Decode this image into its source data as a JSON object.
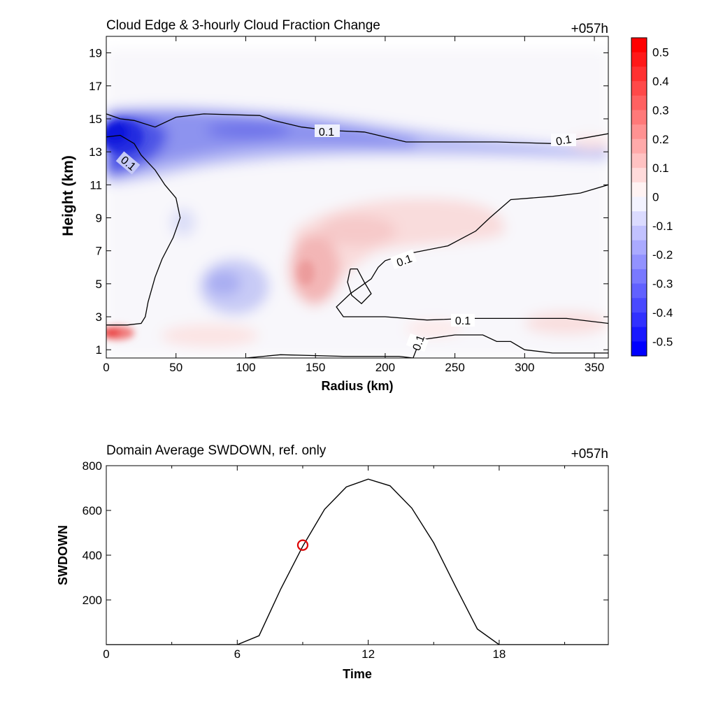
{
  "top": {
    "title": "Cloud Edge & 3-hourly Cloud Fraction Change",
    "timestamp": "+057h",
    "xlabel": "Radius (km)",
    "ylabel": "Height (km)",
    "xticks": [
      "0",
      "50",
      "100",
      "150",
      "200",
      "250",
      "300",
      "350"
    ],
    "yticks": [
      "1",
      "3",
      "5",
      "7",
      "9",
      "11",
      "13",
      "15",
      "17",
      "19"
    ],
    "contour_label": "0.1",
    "colorbar_ticks": [
      "0.5",
      "0.4",
      "0.3",
      "0.2",
      "0.1",
      "0",
      "-0.1",
      "-0.2",
      "-0.3",
      "-0.4",
      "-0.5"
    ]
  },
  "bottom": {
    "title": "Domain Average SWDOWN, ref. only",
    "timestamp": "+057h",
    "xlabel": "Time",
    "ylabel": "SWDOWN",
    "xticks": [
      "0",
      "6",
      "12",
      "18"
    ],
    "yticks": [
      "200",
      "400",
      "600",
      "800"
    ]
  },
  "chart_data": [
    {
      "type": "heatmap",
      "title": "Cloud Edge & 3-hourly Cloud Fraction Change",
      "xlabel": "Radius (km)",
      "ylabel": "Height (km)",
      "xlim": [
        0,
        360
      ],
      "ylim": [
        0.5,
        20
      ],
      "colorbar": {
        "range": [
          -0.55,
          0.55
        ],
        "ticks": [
          0.5,
          0.4,
          0.3,
          0.2,
          0.1,
          0,
          -0.1,
          -0.2,
          -0.3,
          -0.4,
          -0.5
        ],
        "colors": {
          "negative": "#0000ff",
          "zero": "#ffffff",
          "positive": "#ff0000"
        }
      },
      "features": [
        {
          "kind": "min",
          "x": 10,
          "y": 13.8,
          "value": -0.5
        },
        {
          "kind": "min",
          "x": 100,
          "y": 14.4,
          "value": -0.3
        },
        {
          "kind": "min",
          "x": 90,
          "y": 5.2,
          "value": -0.25
        },
        {
          "kind": "max",
          "x": 5,
          "y": 2.0,
          "value": 0.45
        },
        {
          "kind": "max",
          "x": 145,
          "y": 5.5,
          "value": 0.2
        },
        {
          "kind": "max",
          "x": 185,
          "y": 8.5,
          "value": 0.1
        },
        {
          "kind": "max",
          "x": 345,
          "y": 2.5,
          "value": 0.1
        }
      ],
      "contours": [
        {
          "level": 0.1,
          "points": [
            [
              0,
              15.3
            ],
            [
              10,
              15.0
            ],
            [
              20,
              14.9
            ],
            [
              35,
              14.5
            ],
            [
              50,
              15.1
            ],
            [
              70,
              15.3
            ],
            [
              110,
              15.2
            ],
            [
              120,
              14.9
            ],
            [
              140,
              14.5
            ],
            [
              160,
              14.3
            ],
            [
              185,
              14.2
            ],
            [
              200,
              13.9
            ],
            [
              215,
              13.6
            ],
            [
              240,
              13.6
            ],
            [
              280,
              13.6
            ],
            [
              320,
              13.5
            ],
            [
              340,
              13.8
            ],
            [
              360,
              14.1
            ]
          ]
        },
        {
          "level": 0.1,
          "points": [
            [
              0,
              13.9
            ],
            [
              10,
              14.0
            ],
            [
              20,
              13.5
            ],
            [
              25,
              12.8
            ],
            [
              35,
              11.9
            ],
            [
              42,
              11.0
            ],
            [
              50,
              10.2
            ],
            [
              53,
              9.0
            ],
            [
              48,
              7.8
            ],
            [
              40,
              6.5
            ],
            [
              35,
              5.4
            ],
            [
              30,
              3.9
            ],
            [
              28,
              3.0
            ],
            [
              25,
              2.6
            ],
            [
              15,
              2.5
            ],
            [
              0,
              2.5
            ]
          ]
        },
        {
          "level": 0.1,
          "points": [
            [
              360,
              11.0
            ],
            [
              340,
              10.5
            ],
            [
              320,
              10.3
            ],
            [
              290,
              10.1
            ],
            [
              275,
              9.0
            ],
            [
              265,
              8.2
            ],
            [
              245,
              7.3
            ],
            [
              215,
              6.8
            ],
            [
              200,
              6.4
            ],
            [
              195,
              6.0
            ],
            [
              190,
              5.3
            ],
            [
              175,
              4.4
            ],
            [
              165,
              3.6
            ],
            [
              170,
              3.0
            ],
            [
              200,
              3.0
            ],
            [
              230,
              2.8
            ],
            [
              260,
              2.9
            ],
            [
              300,
              2.9
            ],
            [
              330,
              2.9
            ],
            [
              360,
              2.6
            ]
          ]
        },
        {
          "level": 0.1,
          "points": [
            [
              175,
              5.9
            ],
            [
              173,
              5.1
            ],
            [
              176,
              4.3
            ],
            [
              183,
              3.8
            ],
            [
              190,
              4.4
            ],
            [
              185,
              5.1
            ],
            [
              180,
              5.9
            ],
            [
              175,
              5.9
            ]
          ]
        },
        {
          "level": 0.1,
          "points": [
            [
              220,
              0.5
            ],
            [
              225,
              1.6
            ],
            [
              250,
              1.9
            ],
            [
              270,
              1.9
            ],
            [
              280,
              1.5
            ],
            [
              290,
              1.5
            ],
            [
              300,
              1.0
            ],
            [
              320,
              0.8
            ],
            [
              360,
              0.8
            ]
          ]
        },
        {
          "level": 0.1,
          "points": [
            [
              100,
              0.5
            ],
            [
              125,
              0.7
            ],
            [
              170,
              0.6
            ],
            [
              210,
              0.6
            ],
            [
              220,
              0.5
            ]
          ]
        }
      ]
    },
    {
      "type": "line",
      "title": "Domain Average SWDOWN, ref. only",
      "xlabel": "Time",
      "ylabel": "SWDOWN",
      "xlim": [
        0,
        23
      ],
      "ylim": [
        0,
        800
      ],
      "x": [
        0,
        1,
        2,
        3,
        4,
        5,
        6,
        7,
        8,
        9,
        10,
        11,
        12,
        13,
        14,
        15,
        16,
        17,
        18,
        19,
        20,
        21,
        22,
        23
      ],
      "y": [
        0,
        0,
        0,
        0,
        0,
        0,
        0,
        40,
        250,
        440,
        605,
        705,
        740,
        710,
        610,
        455,
        260,
        70,
        0,
        0,
        0,
        0,
        0,
        0
      ],
      "marker": {
        "x": 9,
        "y": 445,
        "color": "#dd0000"
      },
      "line_color": "#000000"
    }
  ]
}
